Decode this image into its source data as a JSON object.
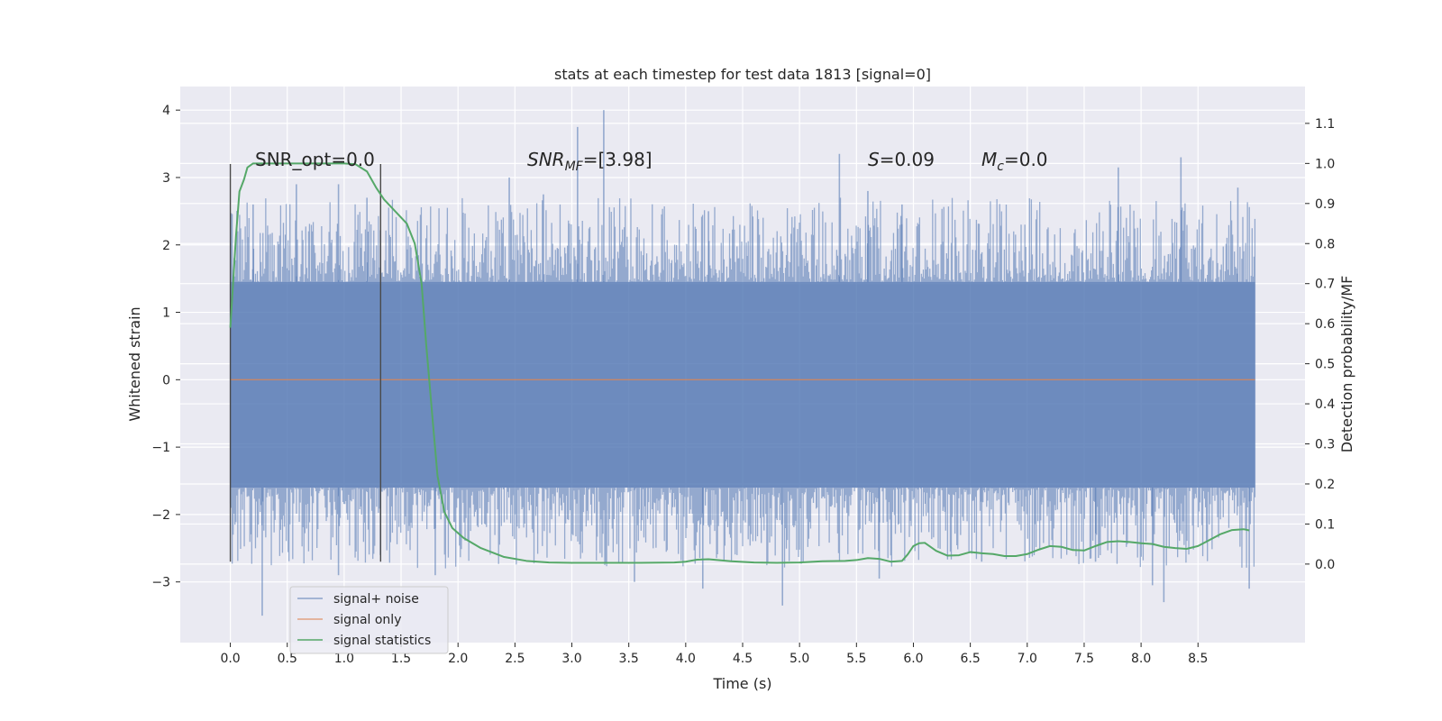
{
  "chart_data": {
    "type": "line",
    "title": "stats at each timestep for test data 1813 [signal=0]",
    "xlabel": "Time (s)",
    "ylabel": "Whitened strain",
    "ylabel_right": "Detection probability/MF",
    "xlim": [
      -0.44,
      9.44
    ],
    "ylim": [
      -3.9,
      4.35
    ],
    "ylim_right": [
      -0.196,
      1.192
    ],
    "x_ticks": [
      "0.0",
      "0.5",
      "1.0",
      "1.5",
      "2.0",
      "2.5",
      "3.0",
      "3.5",
      "4.0",
      "4.5",
      "5.0",
      "5.5",
      "6.0",
      "6.5",
      "7.0",
      "7.5",
      "8.0",
      "8.5"
    ],
    "y_ticks": [
      "−3",
      "−2",
      "−1",
      "0",
      "1",
      "2",
      "3",
      "4"
    ],
    "y_right_ticks": [
      "0.0",
      "0.1",
      "0.2",
      "0.3",
      "0.4",
      "0.5",
      "0.6",
      "0.7",
      "0.8",
      "0.9",
      "1.0",
      "1.1"
    ],
    "grid": true,
    "annotations": {
      "snr_opt": "SNR_opt=0.0",
      "snr_mf_main": "SNR",
      "snr_mf_sub": "MF",
      "snr_mf_rest": "=[3.98]",
      "s_main": "S",
      "s_rest": "=0.09",
      "mc_main": "M",
      "mc_sub": "c",
      "mc_rest": "=0.0"
    },
    "vertical_lines": [
      {
        "x": 0.0,
        "y_range": [
          -2.7,
          3.2
        ]
      },
      {
        "x": 1.32,
        "y_range": [
          -2.7,
          3.2
        ]
      }
    ],
    "series": [
      {
        "name": "signal+ noise",
        "color": "#4c72b0",
        "opacity": 0.55,
        "x_range": [
          0.0,
          9.0
        ],
        "band": [
          -1.6,
          1.45
        ],
        "peaks_high": [
          [
            0.2,
            2.6
          ],
          [
            0.58,
            2.9
          ],
          [
            0.95,
            2.9
          ],
          [
            1.2,
            2.7
          ],
          [
            2.45,
            3.0
          ],
          [
            2.75,
            2.75
          ],
          [
            3.05,
            3.75
          ],
          [
            3.28,
            4.0
          ],
          [
            4.2,
            2.5
          ],
          [
            5.35,
            3.35
          ],
          [
            5.6,
            2.8
          ],
          [
            5.9,
            2.6
          ],
          [
            7.8,
            3.15
          ],
          [
            8.35,
            3.3
          ],
          [
            8.85,
            2.85
          ]
        ],
        "peaks_low": [
          [
            0.28,
            -3.5
          ],
          [
            0.95,
            -2.9
          ],
          [
            1.8,
            -2.9
          ],
          [
            3.55,
            -3.0
          ],
          [
            4.15,
            -3.1
          ],
          [
            4.85,
            -3.35
          ],
          [
            5.7,
            -2.95
          ],
          [
            6.6,
            -2.7
          ],
          [
            7.6,
            -2.7
          ],
          [
            8.1,
            -3.05
          ],
          [
            8.2,
            -3.3
          ],
          [
            8.95,
            -3.1
          ]
        ]
      },
      {
        "name": "signal only",
        "color": "#dd8452",
        "x": [
          0.0,
          9.0
        ],
        "y": [
          0.0,
          0.0
        ]
      },
      {
        "name": "signal statistics",
        "color": "#55a868",
        "axis": "right",
        "x": [
          0.0,
          0.05,
          0.08,
          0.12,
          0.15,
          0.2,
          0.3,
          0.5,
          0.8,
          1.0,
          1.1,
          1.2,
          1.28,
          1.35,
          1.45,
          1.55,
          1.62,
          1.68,
          1.72,
          1.78,
          1.82,
          1.88,
          1.95,
          2.05,
          2.2,
          2.4,
          2.6,
          2.8,
          3.0,
          3.3,
          3.6,
          3.9,
          4.0,
          4.1,
          4.2,
          4.4,
          4.6,
          4.8,
          5.0,
          5.2,
          5.4,
          5.5,
          5.6,
          5.7,
          5.8,
          5.9,
          5.95,
          6.0,
          6.05,
          6.1,
          6.2,
          6.3,
          6.4,
          6.5,
          6.6,
          6.7,
          6.8,
          6.9,
          7.0,
          7.1,
          7.2,
          7.3,
          7.4,
          7.5,
          7.6,
          7.7,
          7.8,
          7.9,
          8.0,
          8.1,
          8.2,
          8.3,
          8.4,
          8.5,
          8.6,
          8.7,
          8.8,
          8.9,
          8.95
        ],
        "y": [
          0.59,
          0.82,
          0.93,
          0.96,
          0.99,
          1.0,
          1.0,
          1.0,
          1.0,
          1.0,
          0.998,
          0.98,
          0.94,
          0.91,
          0.88,
          0.85,
          0.8,
          0.7,
          0.55,
          0.35,
          0.22,
          0.13,
          0.09,
          0.065,
          0.04,
          0.018,
          0.008,
          0.004,
          0.003,
          0.003,
          0.003,
          0.004,
          0.006,
          0.011,
          0.012,
          0.007,
          0.004,
          0.003,
          0.004,
          0.007,
          0.008,
          0.01,
          0.015,
          0.013,
          0.006,
          0.008,
          0.024,
          0.045,
          0.052,
          0.053,
          0.033,
          0.021,
          0.022,
          0.03,
          0.027,
          0.025,
          0.02,
          0.02,
          0.025,
          0.036,
          0.045,
          0.043,
          0.035,
          0.034,
          0.045,
          0.055,
          0.057,
          0.055,
          0.052,
          0.05,
          0.043,
          0.04,
          0.038,
          0.045,
          0.06,
          0.075,
          0.085,
          0.087,
          0.084
        ]
      }
    ],
    "legend": {
      "position": "lower-left",
      "entries": [
        "signal+ noise",
        "signal only",
        "signal statistics"
      ]
    }
  },
  "colors": {
    "axes_bg": "#eaeaf2",
    "grid": "#ffffff",
    "text": "#262626",
    "vline": "#4a4a4a"
  }
}
